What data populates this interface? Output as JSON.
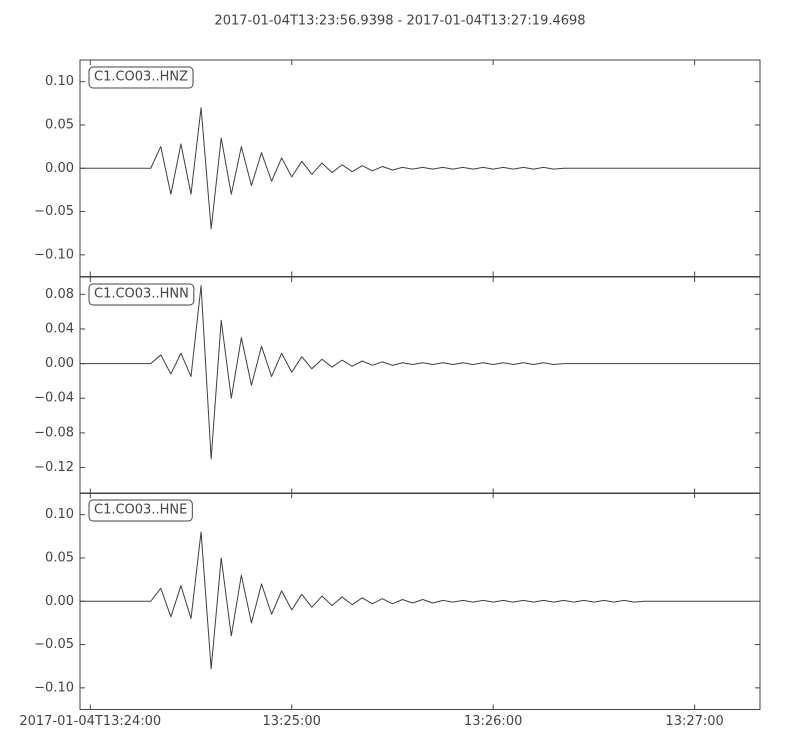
{
  "title": "2017-01-04T13:23:56.9398  -  2017-01-04T13:27:19.4698",
  "xlim": [
    "13:23:56.9398",
    "13:27:19.4698"
  ],
  "xticks": [
    {
      "value": "13:24:00",
      "label": "2017-01-04T13:24:00"
    },
    "13:25:00",
    "13:26:00",
    "13:27:00"
  ],
  "chart_data": [
    {
      "type": "line",
      "label": "C1.CO03..HNZ",
      "color": "#404040",
      "ylim": [
        -0.125,
        0.125
      ],
      "yticks": [
        {
          "value": 0.1,
          "label": "0.10"
        },
        {
          "value": 0.05,
          "label": "0.05"
        },
        {
          "value": 0,
          "label": "0.00"
        },
        {
          "value": -0.05,
          "label": "−0.05"
        },
        {
          "value": -0.1,
          "label": "−0.10"
        }
      ],
      "x": [
        "13:23:57",
        "13:24:00",
        "13:24:03",
        "13:24:06",
        "13:24:09",
        "13:24:12",
        "13:24:15",
        "13:24:18",
        "13:24:21",
        "13:24:24",
        "13:24:27",
        "13:24:30",
        "13:24:33",
        "13:24:36",
        "13:24:39",
        "13:24:42",
        "13:24:45",
        "13:24:48",
        "13:24:51",
        "13:24:54",
        "13:24:57",
        "13:25:00",
        "13:25:03",
        "13:25:06",
        "13:25:09",
        "13:25:12",
        "13:25:15",
        "13:25:18",
        "13:25:21",
        "13:25:24",
        "13:25:27",
        "13:25:30",
        "13:25:33",
        "13:25:36",
        "13:25:39",
        "13:25:42",
        "13:25:45",
        "13:25:48",
        "13:25:51",
        "13:25:54",
        "13:25:57",
        "13:26:00",
        "13:26:03",
        "13:26:06",
        "13:26:09",
        "13:26:12",
        "13:26:15",
        "13:26:18",
        "13:26:21",
        "13:26:24",
        "13:26:27",
        "13:26:30",
        "13:26:33",
        "13:26:36",
        "13:26:39",
        "13:26:42",
        "13:26:45",
        "13:26:48",
        "13:26:51",
        "13:26:54",
        "13:26:57",
        "13:27:00",
        "13:27:03",
        "13:27:06",
        "13:27:09",
        "13:27:12",
        "13:27:15",
        "13:27:18"
      ],
      "values": [
        0,
        0,
        0,
        0,
        0,
        0,
        0,
        0,
        0.025,
        -0.03,
        0.028,
        -0.03,
        0.07,
        -0.07,
        0.035,
        -0.03,
        0.025,
        -0.02,
        0.018,
        -0.015,
        0.012,
        -0.01,
        0.008,
        -0.007,
        0.006,
        -0.005,
        0.004,
        -0.004,
        0.003,
        -0.003,
        0.002,
        -0.002,
        0.001,
        -0.001,
        0.001,
        -0.001,
        0.001,
        -0.001,
        0.001,
        -0.001,
        0.001,
        -0.001,
        0.001,
        -0.001,
        0.001,
        -0.001,
        0.001,
        -0.001,
        0,
        0,
        0,
        0,
        0,
        0,
        0,
        0,
        0,
        0,
        0,
        0,
        0,
        0,
        0,
        0,
        0,
        0,
        0,
        0
      ]
    },
    {
      "type": "line",
      "label": "C1.CO03..HNN",
      "color": "#404040",
      "ylim": [
        -0.15,
        0.1
      ],
      "yticks": [
        {
          "value": 0.08,
          "label": "0.08"
        },
        {
          "value": 0.04,
          "label": "0.04"
        },
        {
          "value": 0,
          "label": "0.00"
        },
        {
          "value": -0.04,
          "label": "−0.04"
        },
        {
          "value": -0.08,
          "label": "−0.08"
        },
        {
          "value": -0.12,
          "label": "−0.12"
        }
      ],
      "x": [
        "13:23:57",
        "13:24:00",
        "13:24:03",
        "13:24:06",
        "13:24:09",
        "13:24:12",
        "13:24:15",
        "13:24:18",
        "13:24:21",
        "13:24:24",
        "13:24:27",
        "13:24:30",
        "13:24:33",
        "13:24:36",
        "13:24:39",
        "13:24:42",
        "13:24:45",
        "13:24:48",
        "13:24:51",
        "13:24:54",
        "13:24:57",
        "13:25:00",
        "13:25:03",
        "13:25:06",
        "13:25:09",
        "13:25:12",
        "13:25:15",
        "13:25:18",
        "13:25:21",
        "13:25:24",
        "13:25:27",
        "13:25:30",
        "13:25:33",
        "13:25:36",
        "13:25:39",
        "13:25:42",
        "13:25:45",
        "13:25:48",
        "13:25:51",
        "13:25:54",
        "13:25:57",
        "13:26:00",
        "13:26:03",
        "13:26:06",
        "13:26:09",
        "13:26:12",
        "13:26:15",
        "13:26:18",
        "13:26:21",
        "13:26:24",
        "13:26:27",
        "13:26:30",
        "13:26:33",
        "13:26:36",
        "13:26:39",
        "13:26:42",
        "13:26:45",
        "13:26:48",
        "13:26:51",
        "13:26:54",
        "13:26:57",
        "13:27:00",
        "13:27:03",
        "13:27:06",
        "13:27:09",
        "13:27:12",
        "13:27:15",
        "13:27:18"
      ],
      "values": [
        0,
        0,
        0,
        0,
        0,
        0,
        0,
        0,
        0.01,
        -0.012,
        0.012,
        -0.015,
        0.09,
        -0.11,
        0.05,
        -0.04,
        0.03,
        -0.025,
        0.02,
        -0.015,
        0.012,
        -0.01,
        0.008,
        -0.006,
        0.005,
        -0.004,
        0.004,
        -0.003,
        0.003,
        -0.002,
        0.002,
        -0.002,
        0.001,
        -0.001,
        0.001,
        -0.001,
        0.001,
        -0.001,
        0.001,
        -0.001,
        0.001,
        -0.001,
        0.001,
        -0.001,
        0.001,
        -0.001,
        0.001,
        -0.001,
        0,
        0,
        0,
        0,
        0,
        0,
        0,
        0,
        0,
        0,
        0,
        0,
        0,
        0,
        0,
        0,
        0,
        0,
        0,
        0
      ]
    },
    {
      "type": "line",
      "label": "C1.CO03..HNE",
      "color": "#404040",
      "ylim": [
        -0.125,
        0.125
      ],
      "yticks": [
        {
          "value": 0.1,
          "label": "0.10"
        },
        {
          "value": 0.05,
          "label": "0.05"
        },
        {
          "value": 0,
          "label": "0.00"
        },
        {
          "value": -0.05,
          "label": "−0.05"
        },
        {
          "value": -0.1,
          "label": "−0.10"
        }
      ],
      "x": [
        "13:23:57",
        "13:24:00",
        "13:24:03",
        "13:24:06",
        "13:24:09",
        "13:24:12",
        "13:24:15",
        "13:24:18",
        "13:24:21",
        "13:24:24",
        "13:24:27",
        "13:24:30",
        "13:24:33",
        "13:24:36",
        "13:24:39",
        "13:24:42",
        "13:24:45",
        "13:24:48",
        "13:24:51",
        "13:24:54",
        "13:24:57",
        "13:25:00",
        "13:25:03",
        "13:25:06",
        "13:25:09",
        "13:25:12",
        "13:25:15",
        "13:25:18",
        "13:25:21",
        "13:25:24",
        "13:25:27",
        "13:25:30",
        "13:25:33",
        "13:25:36",
        "13:25:39",
        "13:25:42",
        "13:25:45",
        "13:25:48",
        "13:25:51",
        "13:25:54",
        "13:25:57",
        "13:26:00",
        "13:26:03",
        "13:26:06",
        "13:26:09",
        "13:26:12",
        "13:26:15",
        "13:26:18",
        "13:26:21",
        "13:26:24",
        "13:26:27",
        "13:26:30",
        "13:26:33",
        "13:26:36",
        "13:26:39",
        "13:26:42",
        "13:26:45",
        "13:26:48",
        "13:26:51",
        "13:26:54",
        "13:26:57",
        "13:27:00",
        "13:27:03",
        "13:27:06",
        "13:27:09",
        "13:27:12",
        "13:27:15",
        "13:27:18"
      ],
      "values": [
        0,
        0,
        0,
        0,
        0,
        0,
        0,
        0,
        0.015,
        -0.018,
        0.018,
        -0.02,
        0.08,
        -0.078,
        0.05,
        -0.04,
        0.03,
        -0.025,
        0.02,
        -0.015,
        0.012,
        -0.01,
        0.008,
        -0.007,
        0.006,
        -0.005,
        0.005,
        -0.004,
        0.004,
        -0.003,
        0.003,
        -0.003,
        0.002,
        -0.002,
        0.002,
        -0.002,
        0.001,
        -0.001,
        0.001,
        -0.001,
        0.001,
        -0.001,
        0.001,
        -0.001,
        0.001,
        -0.001,
        0.001,
        -0.001,
        0.001,
        -0.001,
        0.001,
        -0.001,
        0.001,
        -0.001,
        0.001,
        -0.001,
        0,
        0,
        0,
        0,
        0,
        0,
        0,
        0,
        0,
        0,
        0,
        0
      ]
    }
  ]
}
